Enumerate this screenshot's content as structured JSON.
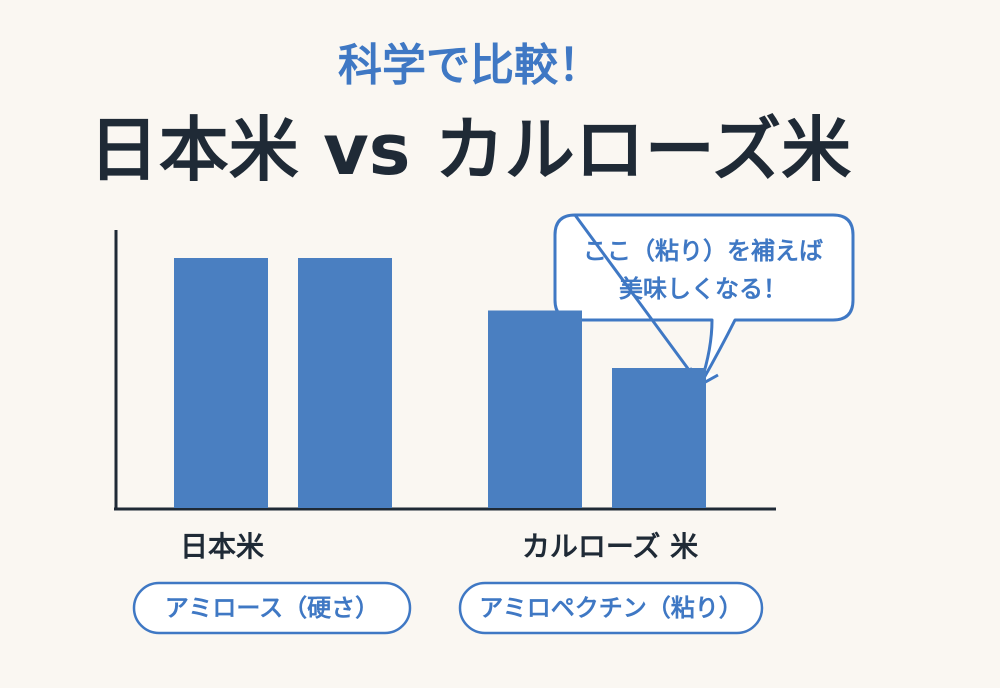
{
  "chart_data": {
    "type": "bar",
    "subtitle": "科学で比較！",
    "title": "日本米 vs カルローズ米",
    "categories": [
      "日本米",
      "カルローズ 米"
    ],
    "category_notes": [
      "アミロース（硬さ）",
      "アミロペクチン（粘り）"
    ],
    "series": [
      {
        "color": "#4a7fc1",
        "values": [
          100,
          79
        ]
      },
      {
        "color": "#4a7fc1",
        "values": [
          100,
          56
        ]
      }
    ],
    "ylim": [
      0,
      100
    ],
    "annotation": [
      "ここ（粘り）を補えば",
      "美味しくなる！"
    ],
    "accent_color": "#3f78c4",
    "title_color": "#1f2a36"
  }
}
